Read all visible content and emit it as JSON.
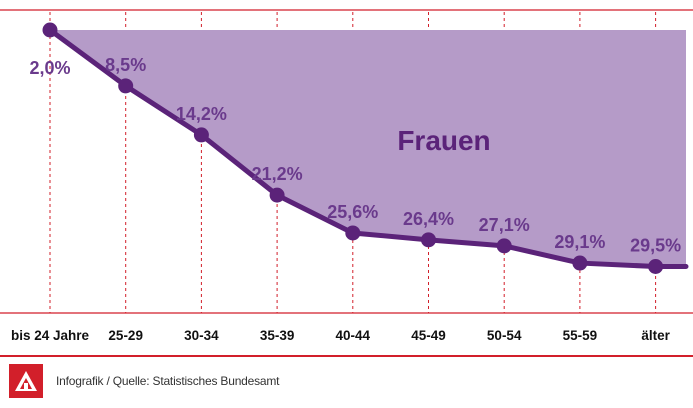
{
  "chart_data": {
    "type": "area",
    "series_label": "Frauen",
    "categories": [
      "bis 24 Jahre",
      "25-29",
      "30-34",
      "35-39",
      "40-44",
      "45-49",
      "50-54",
      "55-59",
      "älter"
    ],
    "values": [
      2.0,
      8.5,
      14.2,
      21.2,
      25.6,
      26.4,
      27.1,
      29.1,
      29.5
    ],
    "value_labels": [
      "2,0%",
      "8,5%",
      "14,2%",
      "21,2%",
      "25,6%",
      "26,4%",
      "27,1%",
      "29,1%",
      "29,5%"
    ],
    "y_inverted": true,
    "grid": "vertical dashed at categories",
    "colors": {
      "line": "#5b2379",
      "fill": "#b59bc8",
      "label": "#6a3a8c",
      "grid": "#d21f2a"
    }
  },
  "footer": {
    "source": "Infografik / Quelle: Statistisches Bundesamt",
    "logo_icon": "ig-metall-logo"
  }
}
